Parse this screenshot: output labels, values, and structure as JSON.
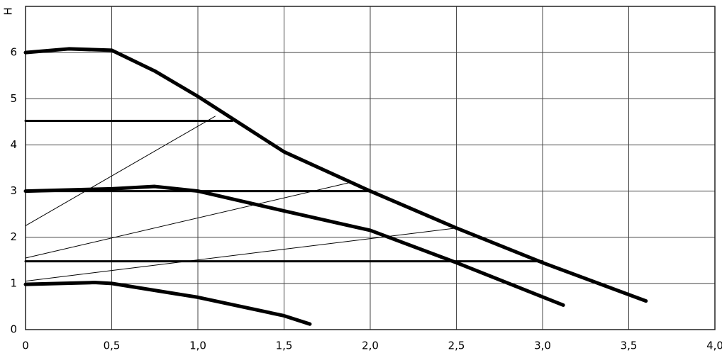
{
  "chart_data": {
    "type": "line",
    "y_label": "H",
    "xlim": [
      0,
      4
    ],
    "ylim": [
      0,
      7
    ],
    "xticks": [
      0,
      {
        "value": 0.5,
        "label": "0,5"
      },
      {
        "value": 1,
        "label": "1,0"
      },
      {
        "value": 1.5,
        "label": "1,5"
      },
      {
        "value": 2,
        "label": "2,0"
      },
      {
        "value": 2.5,
        "label": "2,5"
      },
      {
        "value": 3,
        "label": "3,0"
      },
      {
        "value": 3.5,
        "label": "3,5"
      },
      {
        "value": 4,
        "label": "4,0"
      }
    ],
    "yticks": [
      0,
      1,
      2,
      3,
      4,
      5,
      6
    ],
    "grid": true,
    "series": [
      {
        "color": "#000000",
        "line_width": 5,
        "x": [
          0,
          0.25,
          0.5,
          0.75,
          1.0,
          1.25,
          1.5,
          2.0,
          2.5,
          3.0,
          3.6
        ],
        "values": [
          6.0,
          6.08,
          6.05,
          5.6,
          5.05,
          4.45,
          3.85,
          3.0,
          2.2,
          1.45,
          0.62
        ]
      },
      {
        "color": "#000000",
        "line_width": 5,
        "x": [
          0,
          0.5,
          0.75,
          1.0,
          1.5,
          2.0,
          2.5,
          3.12
        ],
        "values": [
          3.0,
          3.05,
          3.1,
          3.0,
          2.57,
          2.15,
          1.45,
          0.53
        ]
      },
      {
        "color": "#000000",
        "line_width": 5,
        "x": [
          0,
          0.4,
          0.5,
          1.0,
          1.5,
          1.65
        ],
        "values": [
          0.98,
          1.02,
          1.0,
          0.7,
          0.3,
          0.12
        ]
      },
      {
        "color": "#000000",
        "line_width": 3,
        "x": [
          0,
          1.2
        ],
        "values": [
          4.52,
          4.52
        ]
      },
      {
        "color": "#000000",
        "line_width": 3,
        "x": [
          0,
          2.0
        ],
        "values": [
          3.0,
          3.0
        ]
      },
      {
        "color": "#000000",
        "line_width": 3,
        "x": [
          0,
          3.0
        ],
        "values": [
          1.48,
          1.48
        ]
      },
      {
        "color": "#000000",
        "line_width": 1,
        "x": [
          0,
          1.1
        ],
        "values": [
          2.25,
          4.62
        ]
      },
      {
        "color": "#000000",
        "line_width": 1,
        "x": [
          0,
          1.9
        ],
        "values": [
          1.55,
          3.2
        ]
      },
      {
        "color": "#000000",
        "line_width": 1,
        "x": [
          0,
          2.5
        ],
        "values": [
          1.05,
          2.2
        ]
      }
    ]
  }
}
